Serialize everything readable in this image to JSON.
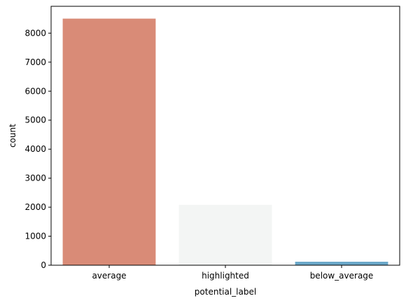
{
  "chart_data": {
    "type": "bar",
    "title": "",
    "xlabel": "potential_label",
    "ylabel": "count",
    "categories": [
      "average",
      "highlighted",
      "below_average"
    ],
    "values": [
      8500,
      2080,
      120
    ],
    "colors": [
      "#d98b77",
      "#f3f5f4",
      "#6aa8c9"
    ],
    "ylim": [
      0,
      8925
    ],
    "yticks": [
      0,
      1000,
      2000,
      3000,
      4000,
      5000,
      6000,
      7000,
      8000
    ],
    "grid": false
  }
}
